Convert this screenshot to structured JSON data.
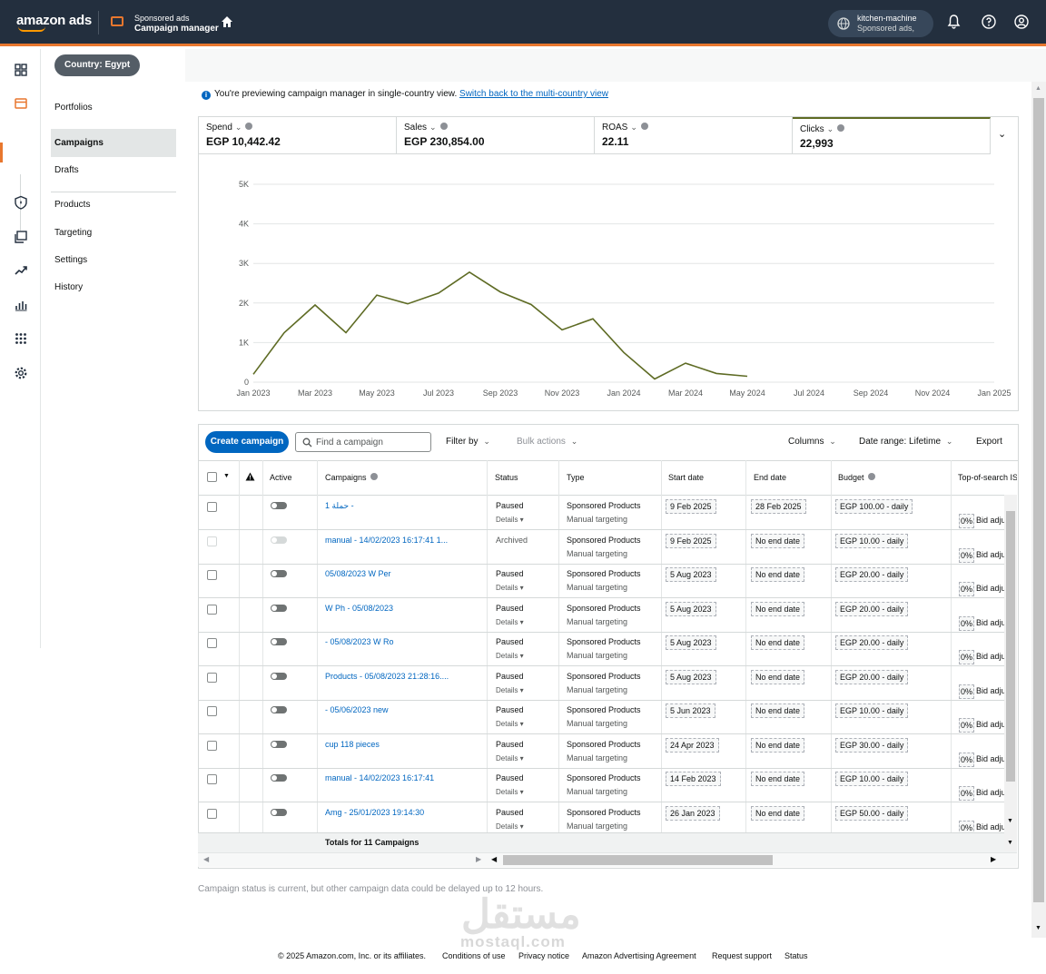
{
  "header": {
    "logo": "amazon ads",
    "product_sub": "Sponsored ads",
    "product_title": "Campaign manager",
    "account_name": "kitchen-machine",
    "account_sub": "Sponsored ads,"
  },
  "colors": {
    "topbar": "#232f3e",
    "accent": "#e8772e",
    "link": "#0066c0",
    "chart_line": "#5e6b24"
  },
  "country_pill": "Country: Egypt",
  "subnav": {
    "portfolios": "Portfolios",
    "campaigns": "Campaigns",
    "drafts": "Drafts",
    "products": "Products",
    "targeting": "Targeting",
    "settings": "Settings",
    "history": "History"
  },
  "notice": {
    "text": "You're previewing campaign manager in single-country view.",
    "link": "Switch back to the multi-country view"
  },
  "metrics": [
    {
      "label": "Spend",
      "value": "EGP 10,442.42"
    },
    {
      "label": "Sales",
      "value": "EGP 230,854.00"
    },
    {
      "label": "ROAS",
      "value": "22.11"
    },
    {
      "label": "Clicks",
      "value": "22,993"
    }
  ],
  "chart_data": {
    "type": "line",
    "x": [
      "Jan 2023",
      "Feb 2023",
      "Mar 2023",
      "Apr 2023",
      "May 2023",
      "Jun 2023",
      "Jul 2023",
      "Aug 2023",
      "Sep 2023",
      "Oct 2023",
      "Nov 2023",
      "Dec 2023",
      "Jan 2024",
      "Feb 2024",
      "Mar 2024",
      "Apr 2024",
      "May 2024",
      "Jan 2025"
    ],
    "series": [
      {
        "values": [
          200,
          1250,
          1950,
          1250,
          2200,
          1980,
          2250,
          2780,
          2280,
          1960,
          1320,
          1600,
          750,
          80,
          480,
          220,
          150,
          150
        ]
      }
    ],
    "x_ticks": [
      "Jan 2023",
      "Mar 2023",
      "May 2023",
      "Jul 2023",
      "Sep 2023",
      "Nov 2023",
      "Jan 2024",
      "Mar 2024",
      "May 2024",
      "Jul 2024",
      "Sep 2024",
      "Nov 2024",
      "Jan 2025"
    ],
    "y_ticks": [
      "0",
      "1K",
      "2K",
      "3K",
      "4K",
      "5K"
    ],
    "ylim": [
      0,
      5000
    ],
    "grid": true
  },
  "toolbar": {
    "create": "Create campaign",
    "search_placeholder": "Find a campaign",
    "filter": "Filter by",
    "bulk": "Bulk actions",
    "columns": "Columns",
    "date_range": "Date range: Lifetime",
    "export": "Export"
  },
  "table": {
    "headers": {
      "active": "Active",
      "campaigns": "Campaigns",
      "status": "Status",
      "type": "Type",
      "start": "Start date",
      "end": "End date",
      "budget": "Budget",
      "top": "Top-of-search IS"
    },
    "details": "Details",
    "rows": [
      {
        "name": "حملة 1 -",
        "status": "Paused",
        "type": "Sponsored Products",
        "targeting": "Manual targeting",
        "start": "9 Feb 2025",
        "end": "28 Feb 2025",
        "budget": "EGP 100.00 - daily",
        "archived": false
      },
      {
        "name": "manual - 14/02/2023 16:17:41 1...",
        "status": "Archived",
        "type": "Sponsored Products",
        "targeting": "Manual targeting",
        "start": "9 Feb 2025",
        "end": "No end date",
        "budget": "EGP 10.00 - daily",
        "archived": true
      },
      {
        "name": "05/08/2023  W Per",
        "status": "Paused",
        "type": "Sponsored Products",
        "targeting": "Manual targeting",
        "start": "5 Aug 2023",
        "end": "No end date",
        "budget": "EGP 20.00 - daily",
        "archived": false
      },
      {
        "name": "W Ph - 05/08/2023",
        "status": "Paused",
        "type": "Sponsored Products",
        "targeting": "Manual targeting",
        "start": "5 Aug 2023",
        "end": "No end date",
        "budget": "EGP 20.00 - daily",
        "archived": false
      },
      {
        "name": "- 05/08/2023  W Ro",
        "status": "Paused",
        "type": "Sponsored Products",
        "targeting": "Manual targeting",
        "start": "5 Aug 2023",
        "end": "No end date",
        "budget": "EGP 20.00 - daily",
        "archived": false
      },
      {
        "name": "Products - 05/08/2023 21:28:16....",
        "status": "Paused",
        "type": "Sponsored Products",
        "targeting": "Manual targeting",
        "start": "5 Aug 2023",
        "end": "No end date",
        "budget": "EGP 20.00 - daily",
        "archived": false
      },
      {
        "name": "- 05/06/2023  new",
        "status": "Paused",
        "type": "Sponsored Products",
        "targeting": "Manual targeting",
        "start": "5 Jun 2023",
        "end": "No end date",
        "budget": "EGP 10.00 - daily",
        "archived": false
      },
      {
        "name": "cup 118 pieces",
        "status": "Paused",
        "type": "Sponsored Products",
        "targeting": "Manual targeting",
        "start": "24 Apr 2023",
        "end": "No end date",
        "budget": "EGP 30.00 - daily",
        "archived": false
      },
      {
        "name": "manual - 14/02/2023 16:17:41",
        "status": "Paused",
        "type": "Sponsored Products",
        "targeting": "Manual targeting",
        "start": "14 Feb 2023",
        "end": "No end date",
        "budget": "EGP 10.00 - daily",
        "archived": false
      },
      {
        "name": "Amg - 25/01/2023 19:14:30",
        "status": "Paused",
        "type": "Sponsored Products",
        "targeting": "Manual targeting",
        "start": "26 Jan 2023",
        "end": "No end date",
        "budget": "EGP 50.00 - daily",
        "archived": false
      }
    ],
    "top_pct": "0%",
    "top_label": "Bid adju",
    "totals": "Totals for 11 Campaigns"
  },
  "footnote": "Campaign status is current, but other campaign data could be delayed up to 12 hours.",
  "footer": {
    "copyright": "© 2025 Amazon.com, Inc. or its affiliates.",
    "conditions": "Conditions of use",
    "privacy": "Privacy notice",
    "agreement": "Amazon Advertising Agreement",
    "support": "Request support",
    "status": "Status"
  },
  "watermark": {
    "arabic": "مستقل",
    "latin": "mostaql.com"
  }
}
